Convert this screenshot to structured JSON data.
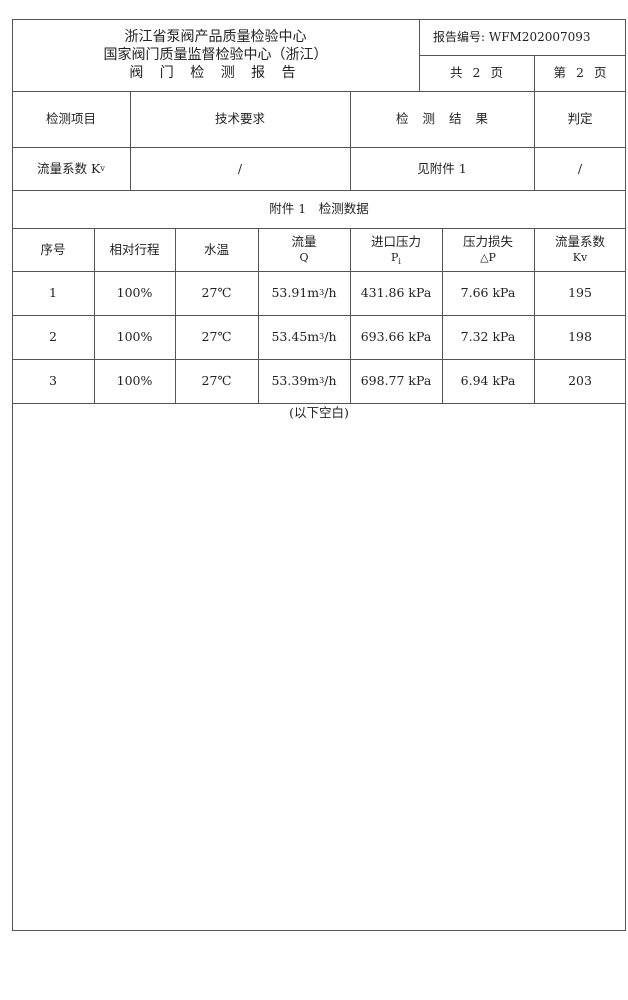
{
  "header": {
    "org_line1": "浙江省泵阀产品质量检验中心",
    "org_line2": "国家阀门质量监督检验中心（浙江）",
    "report_title": "阀 门 检 测 报 告",
    "report_no": "报告编号: WFM202007093",
    "total_pages": "共 2 页",
    "current_page": "第 2 页"
  },
  "summary": {
    "headers": [
      "检测项目",
      "技术要求",
      "检 测 结 果",
      "判定"
    ],
    "row": {
      "item": "流量系数 K",
      "item_sub": "v",
      "requirement": "/",
      "result": "见附件 1",
      "verdict": "/"
    }
  },
  "attachment_title": "附件 1　检测数据",
  "data_table": {
    "headers": [
      {
        "main": "序号",
        "sub": ""
      },
      {
        "main": "相对行程",
        "sub": ""
      },
      {
        "main": "水温",
        "sub": ""
      },
      {
        "main": "流量",
        "sub": "Q"
      },
      {
        "main": "进口压力",
        "sub": "P",
        "sub2": "i"
      },
      {
        "main": "压力损失",
        "sub": "△P"
      },
      {
        "main": "流量系数",
        "sub": "Kv"
      }
    ],
    "rows": [
      {
        "no": "1",
        "travel": "100%",
        "temp": "27℃",
        "flow": "53.91",
        "flow_unit_pre": " m",
        "flow_unit_sup": "3",
        "flow_unit_post": "/h",
        "inlet": "431.86 kPa",
        "loss": "7.66 kPa",
        "kv": "195"
      },
      {
        "no": "2",
        "travel": "100%",
        "temp": "27℃",
        "flow": "53.45",
        "flow_unit_pre": " m",
        "flow_unit_sup": "3",
        "flow_unit_post": "/h",
        "inlet": "693.66 kPa",
        "loss": "7.32 kPa",
        "kv": "198"
      },
      {
        "no": "3",
        "travel": "100%",
        "temp": "27℃",
        "flow": "53.39",
        "flow_unit_pre": " m",
        "flow_unit_sup": "3",
        "flow_unit_post": "/h",
        "inlet": "698.77 kPa",
        "loss": "6.94 kPa",
        "kv": "203"
      }
    ],
    "blank_note": "(以下空白)"
  }
}
